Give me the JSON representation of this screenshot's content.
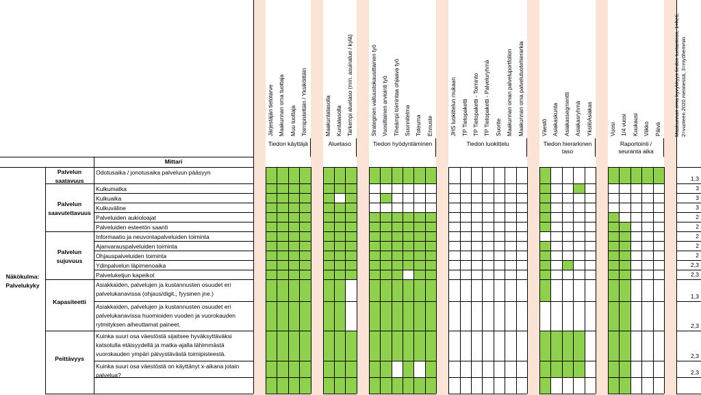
{
  "colors": {
    "green": "#8fd14f",
    "spacer": "#fbe3d6",
    "grid": "#000000"
  },
  "groups": [
    {
      "id": "kayttaja",
      "title": "Tiedon käyttäjä",
      "columns": [
        "Järjestäjän tietotarve",
        "Maakunnan oma tuottaja",
        "Muu tuottaja",
        "Toimipistettäin / Yksiköittäin"
      ]
    },
    {
      "id": "aluetaso",
      "title": "Aluetaso",
      "columns": [
        "Maakuntatasolla",
        "Kuntatasolla",
        "Tarkempi aluetaso (mm. asuinalue / kylä)"
      ]
    },
    {
      "id": "hyodyntaminen",
      "title": "Tiedon hyödyntäminen",
      "columns": [
        "Strateginen valtuustokausittainen työ",
        "Vuosittainen arviointi työ",
        "Tiheämpi toimintaa ohjaava työ",
        "Suunnitelma",
        "Toteuma",
        "Ennuste"
      ]
    },
    {
      "id": "luokittelu",
      "title": "Tiedon luokittelu",
      "columns": [
        "JHS luokittelun mukaan",
        "TP Tietopaketti",
        "TP Tietopaketti - Toiminto",
        "TP Tietopaketti - Palveluryhmä",
        "Suorite",
        "Maakunnan oman palveluportfolion",
        "Maakunnan oma palvelutuotehierarkia"
      ]
    },
    {
      "id": "hierarkinen",
      "title": "Tiedon hierarkinen taso",
      "columns": [
        "Väestö",
        "Asiakaskunta",
        "Asiakassegmentti",
        "Asiakasryhmä",
        "YksilöAsiakas"
      ]
    },
    {
      "id": "raportointi",
      "title": "Raportointi / seuranta aika",
      "columns": [
        "Vuosi",
        "1/4 vuosi",
        "Kuukausi",
        "Viikko",
        "Päivä"
      ]
    }
  ],
  "last_column": "Maakunnan oma kyvykkyys tiedon tuotantoon, 1=heti, 2=vuoteen 2020 mennessä, 3=myöhemmin",
  "mittari_header": "Mittari",
  "nakokulma": "Näkökulma: Palvelukyky",
  "categories": [
    {
      "label": "Palvelun saatavuus",
      "rows": [
        0
      ]
    },
    {
      "label": "Palvelun saavutettavuus",
      "rows": [
        1,
        2,
        3,
        4,
        5
      ]
    },
    {
      "label": "Palvelun sujuvuus",
      "rows": [
        6,
        7,
        8,
        9,
        10
      ]
    },
    {
      "label": "Kapasiteetti",
      "rows": [
        11,
        12
      ]
    },
    {
      "label": "Peittävyys",
      "rows": [
        13,
        14,
        15
      ]
    }
  ],
  "rows": [
    {
      "mittari": "Odotusaika / jonotusaika palveluun pääsyyn",
      "value": "1,3",
      "k": "1111",
      "a": "111",
      "h": "111111",
      "l": "0000000",
      "t": "10000",
      "r": "11111"
    },
    {
      "mittari": "Kulkumatka",
      "value": "3",
      "k": "1111",
      "a": "111",
      "h": "000000",
      "l": "0000000",
      "t": "10010",
      "r": "00000"
    },
    {
      "mittari": "Kulkuaika",
      "value": "3",
      "k": "1111",
      "a": "101",
      "h": "010000",
      "l": "0000000",
      "t": "10000",
      "r": "00000"
    },
    {
      "mittari": "Kulkuväline",
      "value": "3",
      "k": "1111",
      "a": "111",
      "h": "000000",
      "l": "0000000",
      "t": "10000",
      "r": "00000"
    },
    {
      "mittari": "Palveluiden aukioloajat",
      "value": "2",
      "k": "1111",
      "a": "111",
      "h": "111111",
      "l": "0000000",
      "t": "10000",
      "r": "10000"
    },
    {
      "mittari": "Palveluiden esteetön saanti",
      "value": "2",
      "k": "1111",
      "a": "111",
      "h": "111111",
      "l": "0000000",
      "t": "10000",
      "r": "11000"
    },
    {
      "mittari": "Informaatio ja neuvontapalveluiden toiminta",
      "value": "2",
      "k": "1111",
      "a": "111",
      "h": "111111",
      "l": "0000000",
      "t": "00000",
      "r": "11000"
    },
    {
      "mittari": "Ajanvarauspalveluiden toiminta",
      "value": "2",
      "k": "1111",
      "a": "111",
      "h": "111111",
      "l": "0000000",
      "t": "10000",
      "r": "11000"
    },
    {
      "mittari": "Ohjauspalveluiden toiminta",
      "value": "2",
      "k": "1111",
      "a": "111",
      "h": "111111",
      "l": "0000000",
      "t": "10000",
      "r": "11000"
    },
    {
      "mittari": "Ydinpalvelun läpimenoaika",
      "value": "2,3",
      "k": "1111",
      "a": "111",
      "h": "111111",
      "l": "0000000",
      "t": "10100",
      "r": "11000"
    },
    {
      "mittari": "Palveluketjun kapeikot",
      "value": "2,3",
      "k": "1111",
      "a": "111",
      "h": "111011",
      "l": "0000000",
      "t": "10000",
      "r": "11000"
    },
    {
      "mittari": "Asiakkaiden, palvelujen ja kustannusten osuudet eri palvelukanavissa (ohjaus/digit., fyysinen jne.)",
      "value": "1,3",
      "k": "1111",
      "a": "110",
      "h": "111111",
      "l": "0000000",
      "t": "10000",
      "r": "11000"
    },
    {
      "mittari": "Asiakkaiden, palvelujen ja kustannusten osuudet eri palvelukanavissa huomioiden vuoden ja vuorokauden rytmityksen aiheuttamat paineet.",
      "value": "2,3",
      "k": "1111",
      "a": "110",
      "h": "111111",
      "l": "0000000",
      "t": "00000",
      "r": "11000"
    },
    {
      "mittari": "Kuinka suuri osa väestöstä sijaitsee hyväksyttäväksi katsotulla etäisyydellä ja matka-ajalla lähimmästä vuorokauden ympäri päivystävästä toimipisteestä.",
      "value": "2,3",
      "k": "1111",
      "a": "111",
      "h": "111111",
      "l": "0000000",
      "t": "11110",
      "r": "11000"
    },
    {
      "mittari": "Kuinka suuri osa väestöstä on käyttänyt x-aikana jotain palvelua?",
      "value": "2,3",
      "k": "1111",
      "a": "111",
      "h": "110101",
      "l": "0000000",
      "t": "11110",
      "r": "11000"
    },
    {
      "mittari": "",
      "value": "",
      "k": "1111",
      "a": "111",
      "h": "111111",
      "l": "0000000",
      "t": "10000",
      "r": "11000"
    }
  ]
}
